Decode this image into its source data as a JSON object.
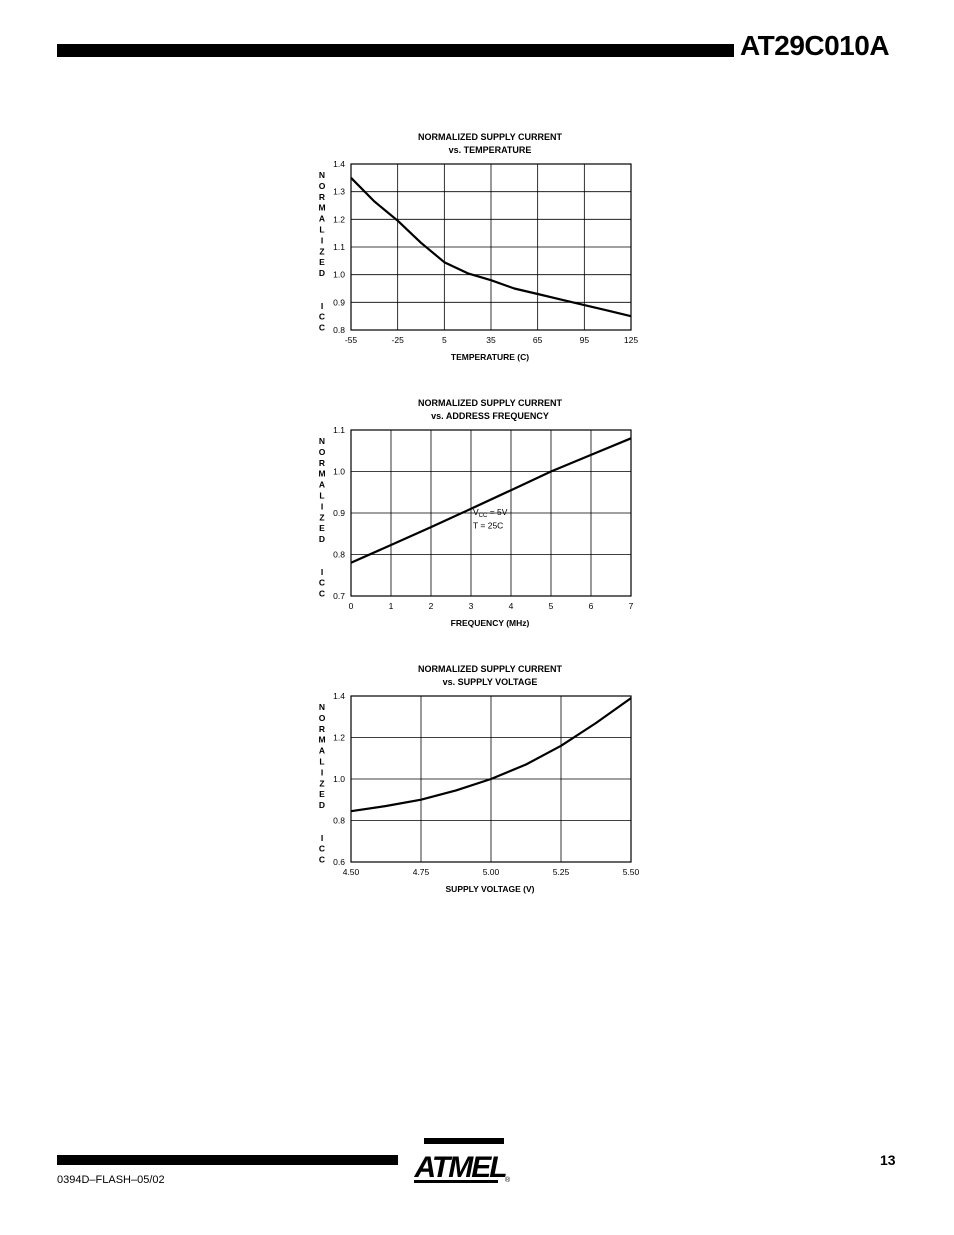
{
  "header": {
    "title": "AT29C010A"
  },
  "footer": {
    "doc_code": "0394D–FLASH–05/02",
    "page_number": "13",
    "logo_text": "ATMEL",
    "logo_registered": "®"
  },
  "chart_data": [
    {
      "type": "line",
      "title": "NORMALIZED SUPPLY CURRENT",
      "subtitle": "vs. TEMPERATURE",
      "xlabel": "TEMPERATURE (C)",
      "ylabel": "NORMALIZED  ICC",
      "xlim": [
        -55,
        125
      ],
      "ylim": [
        0.8,
        1.4
      ],
      "xticks": [
        -55,
        -25,
        5,
        35,
        65,
        95,
        125
      ],
      "xtick_labels": [
        "-55",
        "-25",
        "5",
        "35",
        "65",
        "95",
        "125"
      ],
      "yticks": [
        0.8,
        0.9,
        1.0,
        1.1,
        1.2,
        1.3,
        1.4
      ],
      "ytick_labels": [
        "0.8",
        "0.9",
        "1.0",
        "1.1",
        "1.2",
        "1.3",
        "1.4"
      ],
      "grid": true,
      "series": [
        {
          "x": [
            -55,
            -40,
            -25,
            -10,
            5,
            20,
            35,
            50,
            65,
            80,
            95,
            110,
            125
          ],
          "y": [
            1.35,
            1.265,
            1.195,
            1.115,
            1.045,
            1.005,
            0.98,
            0.95,
            0.93,
            0.91,
            0.89,
            0.87,
            0.85
          ]
        }
      ]
    },
    {
      "type": "line",
      "title": "NORMALIZED SUPPLY CURRENT",
      "subtitle": "vs. ADDRESS FREQUENCY",
      "xlabel": "FREQUENCY (MHz)",
      "ylabel": "NORMALIZED  ICC",
      "xlim": [
        0,
        7
      ],
      "ylim": [
        0.7,
        1.1
      ],
      "xticks": [
        0,
        1,
        2,
        3,
        4,
        5,
        6,
        7
      ],
      "xtick_labels": [
        "0",
        "1",
        "2",
        "3",
        "4",
        "5",
        "6",
        "7"
      ],
      "yticks": [
        0.7,
        0.8,
        0.9,
        1.0,
        1.1
      ],
      "ytick_labels": [
        "0.7",
        "0.8",
        "0.9",
        "1.0",
        "1.1"
      ],
      "grid": true,
      "annotation": {
        "vcc_prefix": "V",
        "vcc_sub": "CC",
        "vcc_rest": " = 5V",
        "temp": "T = 25C"
      },
      "series": [
        {
          "x": [
            0,
            1,
            2,
            3,
            4,
            5,
            6,
            7
          ],
          "y": [
            0.78,
            0.823,
            0.866,
            0.91,
            0.955,
            1.0,
            1.04,
            1.08
          ]
        }
      ]
    },
    {
      "type": "line",
      "title": "NORMALIZED SUPPLY CURRENT",
      "subtitle": "vs. SUPPLY VOLTAGE",
      "xlabel": "SUPPLY VOLTAGE (V)",
      "ylabel": "NORMALIZED  ICC",
      "xlim": [
        4.5,
        5.5
      ],
      "ylim": [
        0.6,
        1.4
      ],
      "xticks": [
        4.5,
        4.75,
        5.0,
        5.25,
        5.5
      ],
      "xtick_labels": [
        "4.50",
        "4.75",
        "5.00",
        "5.25",
        "5.50"
      ],
      "yticks": [
        0.6,
        0.8,
        1.0,
        1.2,
        1.4
      ],
      "ytick_labels": [
        "0.6",
        "0.8",
        "1.0",
        "1.2",
        "1.4"
      ],
      "grid": true,
      "series": [
        {
          "x": [
            4.5,
            4.625,
            4.75,
            4.875,
            5.0,
            5.125,
            5.25,
            5.375,
            5.5
          ],
          "y": [
            0.845,
            0.87,
            0.9,
            0.945,
            1.0,
            1.07,
            1.16,
            1.27,
            1.39
          ]
        }
      ]
    }
  ]
}
